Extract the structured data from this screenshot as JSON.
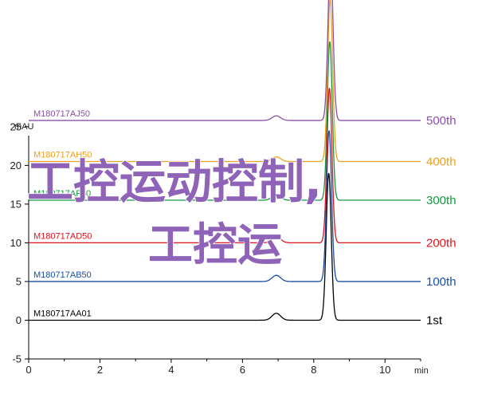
{
  "chart_data": {
    "type": "line",
    "ylabel": "mAU",
    "xlabel": "min",
    "xlim": [
      0,
      11
    ],
    "ylim": [
      -5,
      29
    ],
    "x_ticks": [
      "0",
      "2",
      "4",
      "6",
      "8",
      "10"
    ],
    "y_ticks": [
      "-5",
      "0",
      "5",
      "10",
      "15",
      "20",
      "25"
    ],
    "grid": false,
    "series": [
      {
        "name": "M180717AA01",
        "run_label": "1st",
        "color": "#000000",
        "baseline": 0,
        "peaks": [
          {
            "x": 6.95,
            "height": 0.9
          },
          {
            "x": 8.42,
            "height": 19.0
          }
        ]
      },
      {
        "name": "M180717AB50",
        "run_label": "100th",
        "color": "#1a4fa0",
        "baseline": 5,
        "peaks": [
          {
            "x": 6.95,
            "height": 0.8
          },
          {
            "x": 8.43,
            "height": 19.5
          }
        ]
      },
      {
        "name": "M180717AD50",
        "run_label": "200th",
        "color": "#e0141e",
        "baseline": 10,
        "peaks": [
          {
            "x": 6.95,
            "height": 0.8
          },
          {
            "x": 8.44,
            "height": 20.0
          }
        ]
      },
      {
        "name": "M180717AF50",
        "run_label": "300th",
        "color": "#149940",
        "baseline": 15.5,
        "peaks": [
          {
            "x": 6.95,
            "height": 0.7
          },
          {
            "x": 8.45,
            "height": 20.5
          }
        ]
      },
      {
        "name": "M180717AH50",
        "run_label": "400th",
        "color": "#f0a020",
        "baseline": 20.5,
        "peaks": [
          {
            "x": 6.95,
            "height": 0.6
          },
          {
            "x": 8.46,
            "height": 21.0
          }
        ]
      },
      {
        "name": "M180717AJ50",
        "run_label": "500th",
        "color": "#8a50a8",
        "baseline": 25.8,
        "peaks": [
          {
            "x": 6.95,
            "height": 0.6
          },
          {
            "x": 8.47,
            "height": 21.0
          }
        ]
      }
    ]
  },
  "watermark": {
    "line1": "工控运动控制,",
    "line2": "工控运"
  }
}
